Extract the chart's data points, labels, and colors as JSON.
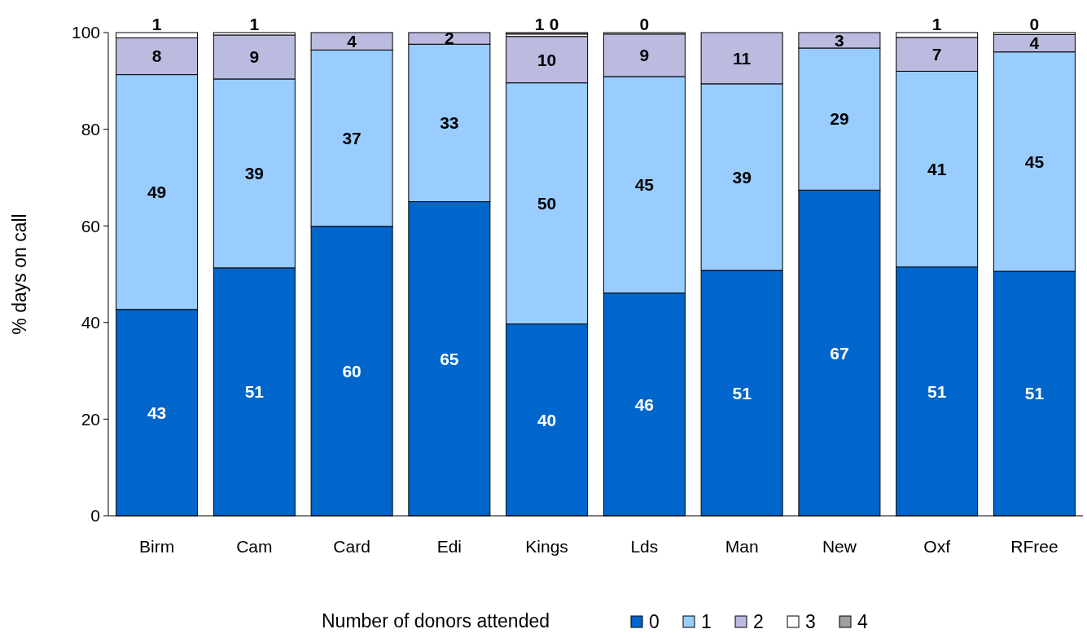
{
  "chart_data": {
    "type": "bar",
    "stacked": true,
    "ylabel": "% days on call",
    "legend_title": "Number of donors attended",
    "legend": "bottom",
    "categories": [
      "Birm",
      "Cam",
      "Card",
      "Edi",
      "Kings",
      "Lds",
      "Man",
      "New",
      "Oxf",
      "RFree"
    ],
    "ylim": [
      0,
      100
    ],
    "yticks": [
      0,
      20,
      40,
      60,
      80,
      100
    ],
    "series": [
      {
        "name": "0",
        "color": "#0066cc",
        "values": [
          42.7,
          51.3,
          59.9,
          65,
          39.7,
          46.1,
          50.8,
          67.4,
          51.5,
          50.6
        ],
        "value_labels": [
          "43",
          "51",
          "60",
          "65",
          "40",
          "46",
          "51",
          "67",
          "51",
          "51"
        ]
      },
      {
        "name": "1",
        "color": "#99ccff",
        "values": [
          48.6,
          39.1,
          36.5,
          32.6,
          49.9,
          44.8,
          38.6,
          29.4,
          40.5,
          45.4
        ],
        "value_labels": [
          "49",
          "39",
          "37",
          "33",
          "50",
          "45",
          "39",
          "29",
          "41",
          "45"
        ]
      },
      {
        "name": "2",
        "color": "#bbbbe0",
        "values": [
          7.6,
          9.1,
          3.6,
          2.4,
          9.6,
          8.8,
          10.6,
          3.2,
          7,
          3.6
        ],
        "value_labels": [
          "8",
          "9",
          "4",
          "2",
          "10",
          "9",
          "11",
          "3",
          "7",
          "4"
        ]
      },
      {
        "name": "3",
        "color": "#ffffff",
        "values": [
          1.1,
          0.5,
          0,
          0,
          0.5,
          0.3,
          0,
          0,
          1,
          0.4
        ],
        "value_labels": [
          "1",
          "1",
          null,
          null,
          "1",
          "0",
          null,
          null,
          "1",
          "0"
        ]
      },
      {
        "name": "4",
        "color": "#a0a0a0",
        "values": [
          0,
          0,
          0,
          0,
          0.3,
          0,
          0,
          0,
          0,
          0
        ],
        "value_labels": [
          null,
          null,
          null,
          null,
          "0",
          null,
          null,
          null,
          null,
          null
        ]
      }
    ]
  }
}
